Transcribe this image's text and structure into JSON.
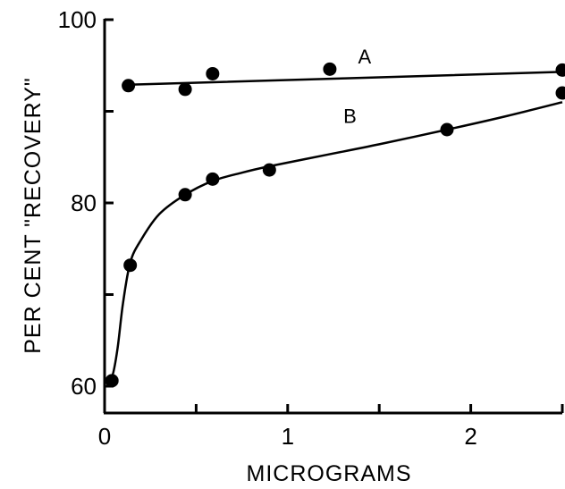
{
  "chart_data": {
    "type": "line",
    "title": "",
    "xlabel": "MICROGRAMS",
    "ylabel": "PER CENT \"RECOVERY\"",
    "xlim": [
      0,
      2.5
    ],
    "ylim": [
      55,
      100
    ],
    "x_ticks": [
      0,
      0.5,
      1,
      1.5,
      2,
      2.5
    ],
    "x_tick_labels": [
      "0",
      "",
      "1",
      "",
      "2",
      ""
    ],
    "y_ticks": [
      60,
      70,
      80,
      90,
      100
    ],
    "y_tick_labels": [
      "60",
      "",
      "80",
      "",
      "100"
    ],
    "grid": false,
    "series": [
      {
        "name": "A",
        "points": [
          {
            "x": 0.13,
            "y": 92.8
          },
          {
            "x": 0.44,
            "y": 92.4
          },
          {
            "x": 0.59,
            "y": 94.1
          },
          {
            "x": 1.23,
            "y": 94.6
          },
          {
            "x": 2.5,
            "y": 94.5
          }
        ],
        "curve": [
          [
            0.13,
            92.9
          ],
          [
            2.5,
            94.3
          ]
        ]
      },
      {
        "name": "B",
        "points": [
          {
            "x": 0.04,
            "y": 60.6
          },
          {
            "x": 0.14,
            "y": 73.2
          },
          {
            "x": 0.44,
            "y": 80.9
          },
          {
            "x": 0.59,
            "y": 82.6
          },
          {
            "x": 0.9,
            "y": 83.6
          },
          {
            "x": 1.87,
            "y": 88.0
          },
          {
            "x": 2.5,
            "y": 92.0
          }
        ],
        "curve": [
          [
            0.0,
            60.6
          ],
          [
            0.04,
            61.0
          ],
          [
            0.07,
            64.0
          ],
          [
            0.1,
            69.0
          ],
          [
            0.14,
            73.5
          ],
          [
            0.2,
            76.0
          ],
          [
            0.3,
            78.8
          ],
          [
            0.44,
            80.9
          ],
          [
            0.59,
            82.4
          ],
          [
            0.75,
            83.3
          ],
          [
            0.9,
            84.0
          ],
          [
            1.2,
            85.2
          ],
          [
            1.5,
            86.4
          ],
          [
            1.87,
            88.0
          ],
          [
            2.2,
            89.5
          ],
          [
            2.5,
            91.0
          ]
        ]
      }
    ]
  }
}
